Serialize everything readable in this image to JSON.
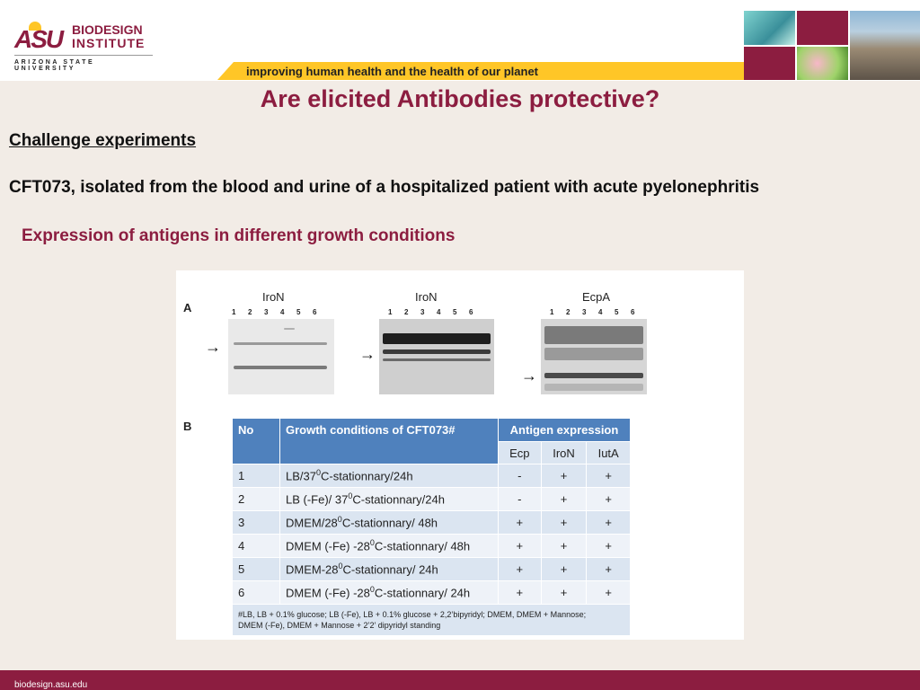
{
  "header": {
    "logo": {
      "asu": "ASU",
      "line1": "BIODESIGN",
      "line2": "INSTITUTE",
      "university": "ARIZONA STATE UNIVERSITY"
    },
    "tagline": "improving human health and the health of our planet"
  },
  "slide": {
    "title": "Are elicited Antibodies protective?",
    "heading": "Challenge experiments",
    "description": "CFT073, isolated from the blood and urine of a hospitalized patient with acute pyelonephritis",
    "subheading": "Expression of antigens in different growth conditions"
  },
  "figure": {
    "panel_a": "A",
    "panel_b": "B",
    "arrow": "→",
    "blots": [
      {
        "title": "IroN",
        "lanes": [
          "1",
          "2",
          "3",
          "4",
          "5",
          "6"
        ]
      },
      {
        "title": "IroN",
        "lanes": [
          "1",
          "2",
          "3",
          "4",
          "5",
          "6"
        ]
      },
      {
        "title": "EcpA",
        "lanes": [
          "1",
          "2",
          "3",
          "4",
          "5",
          "6"
        ]
      }
    ],
    "table": {
      "headers": {
        "no": "No",
        "conditions": "Growth conditions of CFT073#",
        "antigen": "Antigen expression"
      },
      "subheaders": [
        "Ecp",
        "IroN",
        "IutA"
      ],
      "rows": [
        {
          "no": "1",
          "cond_a": "LB/37",
          "cond_sup": "0",
          "cond_b": "C-stationnary/24h",
          "ecp": "-",
          "iron": "+",
          "iuta": "+"
        },
        {
          "no": "2",
          "cond_a": "LB (-Fe)/ 37",
          "cond_sup": "0",
          "cond_b": "C-stationnary/24h",
          "ecp": "-",
          "iron": "+",
          "iuta": "+"
        },
        {
          "no": "3",
          "cond_a": "DMEM/28",
          "cond_sup": "0",
          "cond_b": "C-stationnary/ 48h",
          "ecp": "+",
          "iron": "+",
          "iuta": "+"
        },
        {
          "no": "4",
          "cond_a": "DMEM (-Fe) -28",
          "cond_sup": "0",
          "cond_b": "C-stationnary/ 48h",
          "ecp": "+",
          "iron": "+",
          "iuta": "+"
        },
        {
          "no": "5",
          "cond_a": "DMEM-28",
          "cond_sup": "0",
          "cond_b": "C-stationnary/ 24h",
          "ecp": "+",
          "iron": "+",
          "iuta": "+"
        },
        {
          "no": "6",
          "cond_a": "DMEM (-Fe) -28",
          "cond_sup": "0",
          "cond_b": "C-stationnary/ 24h",
          "ecp": "+",
          "iron": "+",
          "iuta": "+"
        }
      ],
      "footnote_line1": "#LB, LB + 0.1% glucose; LB (-Fe), LB + 0.1% glucose + 2,2’bipyridyl; DMEM, DMEM + Mannose;",
      "footnote_line2": "DMEM (-Fe), DMEM + Mannose + 2’2’ dipyridyl  standing"
    }
  },
  "footer": {
    "url": "biodesign.asu.edu"
  },
  "colors": {
    "maroon": "#8c1d40",
    "gold": "#ffc627",
    "table_header": "#4f81bd"
  }
}
